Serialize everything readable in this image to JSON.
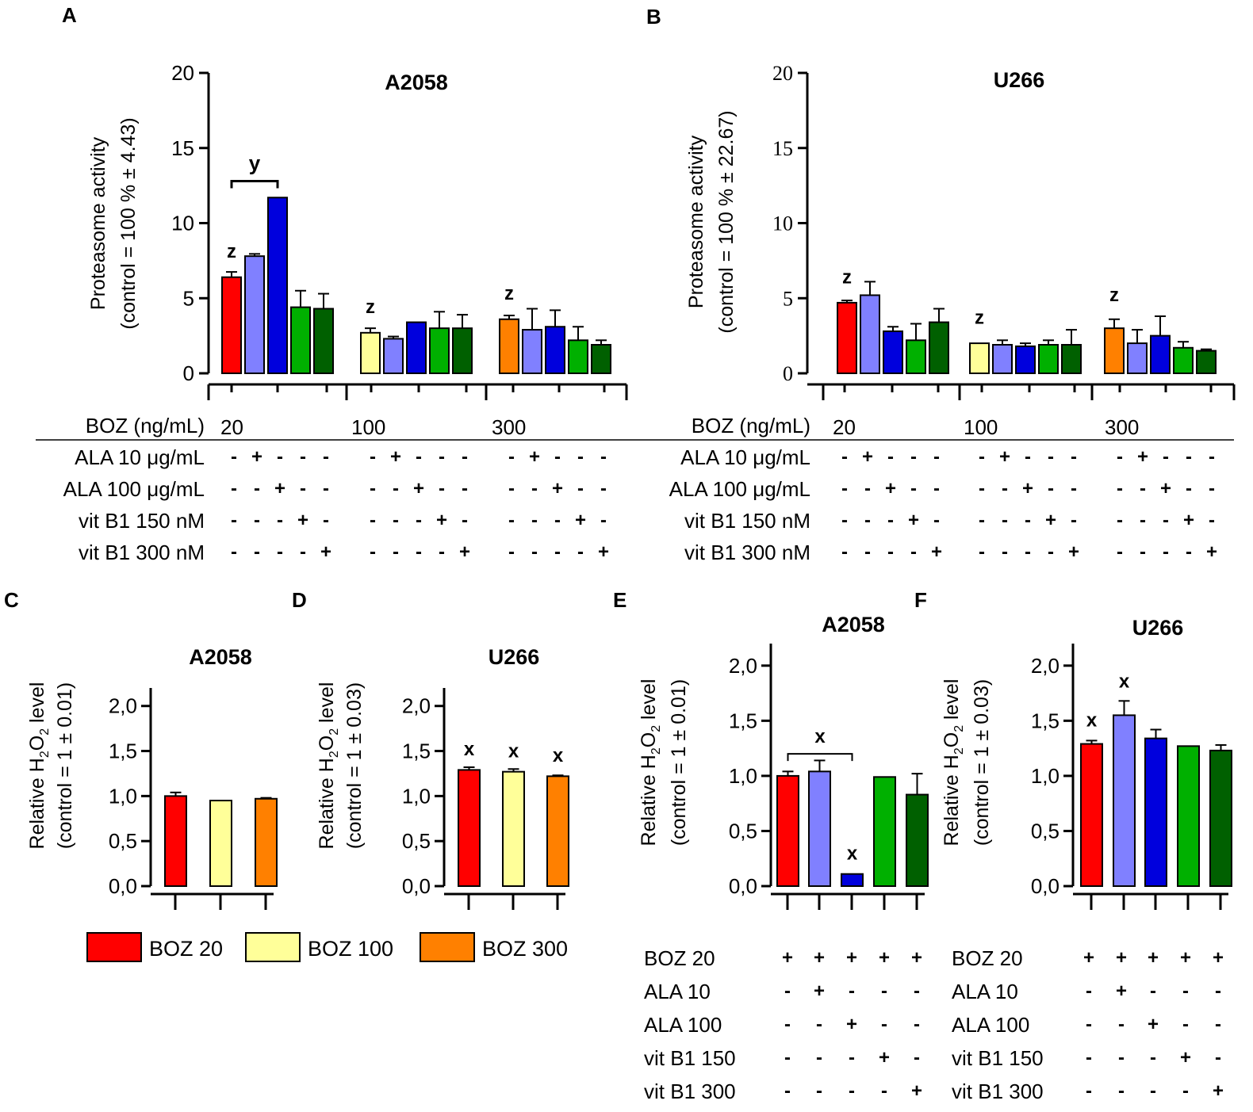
{
  "colors": {
    "red": "#ff0000",
    "lightblue": "#8080ff",
    "blue": "#0000dd",
    "green": "#00b000",
    "darkgreen": "#006000",
    "yellow": "#ffff99",
    "orange": "#ff8000"
  },
  "legend": {
    "items": [
      {
        "label": "BOZ 20",
        "color": "#ff0000"
      },
      {
        "label": "BOZ 100",
        "color": "#ffff99"
      },
      {
        "label": "BOZ 300",
        "color": "#ff8000"
      }
    ]
  },
  "treat_ab": {
    "boz_label": "BOZ (ng/mL)",
    "doses": [
      "20",
      "100",
      "300"
    ],
    "rows": [
      {
        "label": "ALA 10 μg/mL",
        "signs": [
          "-",
          "+",
          "-",
          "-",
          "-"
        ]
      },
      {
        "label": "ALA 100 μg/mL",
        "signs": [
          "-",
          "-",
          "+",
          "-",
          "-"
        ]
      },
      {
        "label": "vit B1 150 nM",
        "signs": [
          "-",
          "-",
          "-",
          "+",
          "-"
        ]
      },
      {
        "label": "vit B1 300 nM",
        "signs": [
          "-",
          "-",
          "-",
          "-",
          "+"
        ]
      }
    ]
  },
  "treat_ef": {
    "rows": [
      {
        "label": "BOZ 20",
        "signs": [
          "+",
          "+",
          "+",
          "+",
          "+"
        ]
      },
      {
        "label": "ALA 10",
        "signs": [
          "-",
          "+",
          "-",
          "-",
          "-"
        ]
      },
      {
        "label": "ALA 100",
        "signs": [
          "-",
          "-",
          "+",
          "-",
          "-"
        ]
      },
      {
        "label": "vit B1 150",
        "signs": [
          "-",
          "-",
          "-",
          "+",
          "-"
        ]
      },
      {
        "label": "vit B1 300",
        "signs": [
          "-",
          "-",
          "-",
          "-",
          "+"
        ]
      }
    ]
  },
  "chart_data": [
    {
      "panel": "A",
      "type": "bar",
      "title": "A2058",
      "ylabel": "Proteasome activity",
      "ylabel2": "(control = 100 % ± 4.43)",
      "ylim": [
        0,
        20
      ],
      "yticks": [
        "0",
        "5",
        "10",
        "15",
        "20"
      ],
      "groups": [
        "20",
        "100",
        "300"
      ],
      "values": [
        [
          6.4,
          7.8,
          11.7,
          4.4,
          4.3
        ],
        [
          2.7,
          2.3,
          3.4,
          3.0,
          3.0
        ],
        [
          3.6,
          2.9,
          3.1,
          2.2,
          1.9
        ]
      ],
      "errors": [
        [
          0.35,
          0.15,
          0.0,
          1.1,
          1.0
        ],
        [
          0.3,
          0.15,
          0.0,
          1.1,
          0.9
        ],
        [
          0.25,
          1.4,
          1.1,
          0.9,
          0.3
        ]
      ],
      "colors": [
        [
          "#ff0000",
          "#8080ff",
          "#0000dd",
          "#00b000",
          "#006000"
        ],
        [
          "#ffff99",
          "#8080ff",
          "#0000dd",
          "#00b000",
          "#006000"
        ],
        [
          "#ff8000",
          "#8080ff",
          "#0000dd",
          "#00b000",
          "#006000"
        ]
      ],
      "annotations": [
        {
          "text": "z",
          "group": 0,
          "bar": 0,
          "y": 7.7
        },
        {
          "text": "z",
          "group": 1,
          "bar": 0,
          "y": 4.0
        },
        {
          "text": "z",
          "group": 2,
          "bar": 0,
          "y": 4.9
        }
      ],
      "bracket": {
        "text": "y",
        "from_bar": 0,
        "to_bar": 2,
        "group": 0,
        "y": 12.8
      }
    },
    {
      "panel": "B",
      "type": "bar",
      "title": "U266",
      "ylabel": "Proteasome activity",
      "ylabel2": "(control = 100 % ± 22.67)",
      "ylim": [
        0,
        20
      ],
      "yticks": [
        "0",
        "5",
        "10",
        "15",
        "20"
      ],
      "groups": [
        "20",
        "100",
        "300"
      ],
      "values": [
        [
          4.7,
          5.2,
          2.8,
          2.2,
          3.4
        ],
        [
          2.0,
          1.9,
          1.8,
          1.9,
          1.9
        ],
        [
          3.0,
          2.0,
          2.5,
          1.7,
          1.5
        ]
      ],
      "errors": [
        [
          0.15,
          0.9,
          0.3,
          1.1,
          0.9
        ],
        [
          0.0,
          0.3,
          0.2,
          0.3,
          1.0
        ],
        [
          0.6,
          0.9,
          1.3,
          0.4,
          0.1
        ]
      ],
      "colors": [
        [
          "#ff0000",
          "#8080ff",
          "#0000dd",
          "#00b000",
          "#006000"
        ],
        [
          "#ffff99",
          "#8080ff",
          "#0000dd",
          "#00b000",
          "#006000"
        ],
        [
          "#ff8000",
          "#8080ff",
          "#0000dd",
          "#00b000",
          "#006000"
        ]
      ],
      "annotations": [
        {
          "text": "z",
          "group": 0,
          "bar": 0,
          "y": 6.0
        },
        {
          "text": "z",
          "group": 1,
          "bar": 0,
          "y": 3.3
        },
        {
          "text": "z",
          "group": 2,
          "bar": 0,
          "y": 4.8
        }
      ]
    },
    {
      "panel": "C",
      "type": "bar",
      "title": "A2058",
      "ylabel_prefix": "Relative H",
      "ylabel2": "(control = 1 ± 0.01)",
      "ylim": [
        0,
        2.2
      ],
      "yticks": [
        "0,0",
        "0,5",
        "1,0",
        "1,5",
        "2,0"
      ],
      "categories": [
        "BOZ 20",
        "BOZ 100",
        "BOZ 300"
      ],
      "values": [
        1.0,
        0.95,
        0.97
      ],
      "errors": [
        0.04,
        0.0,
        0.01
      ],
      "colors": [
        "#ff0000",
        "#ffff99",
        "#ff8000"
      ],
      "annotations": []
    },
    {
      "panel": "D",
      "type": "bar",
      "title": "U266",
      "ylabel_prefix": "Relative H",
      "ylabel2": "(control = 1 ± 0.03)",
      "ylim": [
        0,
        2.2
      ],
      "yticks": [
        "0,0",
        "0,5",
        "1,0",
        "1,5",
        "2,0"
      ],
      "categories": [
        "BOZ 20",
        "BOZ 100",
        "BOZ 300"
      ],
      "values": [
        1.29,
        1.27,
        1.22
      ],
      "errors": [
        0.03,
        0.03,
        0.01
      ],
      "colors": [
        "#ff0000",
        "#ffff99",
        "#ff8000"
      ],
      "annotations": [
        {
          "text": "x",
          "bar": 0,
          "y": 1.45
        },
        {
          "text": "x",
          "bar": 1,
          "y": 1.43
        },
        {
          "text": "x",
          "bar": 2,
          "y": 1.38
        }
      ]
    },
    {
      "panel": "E",
      "type": "bar",
      "title": "A2058",
      "ylabel_prefix": "Relative H",
      "ylabel2": "(control = 1 ± 0.01)",
      "ylim": [
        0,
        2.2
      ],
      "yticks": [
        "0,0",
        "0,5",
        "1,0",
        "1,5",
        "2,0"
      ],
      "values": [
        1.0,
        1.04,
        0.11,
        0.99,
        0.83
      ],
      "errors": [
        0.04,
        0.1,
        0.0,
        0.0,
        0.19
      ],
      "colors": [
        "#ff0000",
        "#8080ff",
        "#0000dd",
        "#00b000",
        "#006000"
      ],
      "annotations": [
        {
          "text": "x",
          "bar": 2,
          "y": 0.24
        }
      ],
      "bracket": {
        "text": "x",
        "from_bar": 0,
        "to_bar": 2,
        "y": 1.2
      }
    },
    {
      "panel": "F",
      "type": "bar",
      "title": "U266",
      "ylabel_prefix": "Relative H",
      "ylabel2": "(control = 1 ± 0.03)",
      "ylim": [
        0,
        2.2
      ],
      "yticks": [
        "0,0",
        "0,5",
        "1,0",
        "1,5",
        "2,0"
      ],
      "values": [
        1.29,
        1.55,
        1.34,
        1.27,
        1.23
      ],
      "errors": [
        0.03,
        0.13,
        0.08,
        0.0,
        0.05
      ],
      "colors": [
        "#ff0000",
        "#8080ff",
        "#0000dd",
        "#00b000",
        "#006000"
      ],
      "annotations": [
        {
          "text": "x",
          "bar": 0,
          "y": 1.45
        },
        {
          "text": "x",
          "bar": 1,
          "y": 1.8
        }
      ]
    }
  ]
}
